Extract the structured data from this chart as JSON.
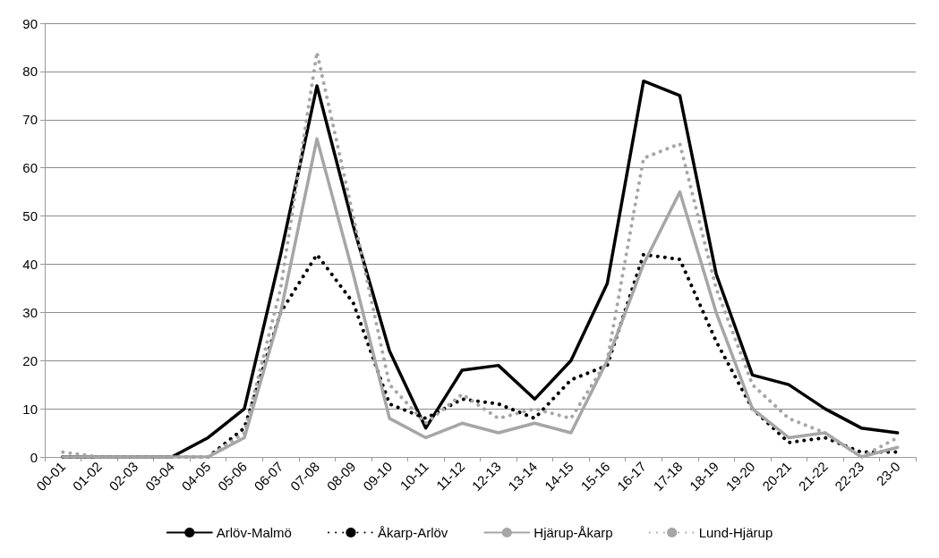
{
  "chart_data": {
    "type": "line",
    "categories": [
      "00-01",
      "01-02",
      "02-03",
      "03-04",
      "04-05",
      "05-06",
      "06-07",
      "07-08",
      "08-09",
      "09-10",
      "10-11",
      "11-12",
      "12-13",
      "13-14",
      "14-15",
      "15-16",
      "16-17",
      "17-18",
      "18-19",
      "19-20",
      "20-21",
      "21-22",
      "22-23",
      "23-0"
    ],
    "series": [
      {
        "name": "Arlöv-Malmö",
        "color": "#000000",
        "line_style": "solid",
        "values": [
          0,
          0,
          0,
          0,
          4,
          10,
          42,
          77,
          48,
          22,
          6,
          18,
          19,
          12,
          20,
          36,
          78,
          75,
          38,
          17,
          15,
          10,
          6,
          5
        ]
      },
      {
        "name": "Åkarp-Arlöv",
        "color": "#000000",
        "line_style": "dotted",
        "values": [
          0,
          0,
          0,
          0,
          0,
          6,
          30,
          42,
          32,
          11,
          8,
          12,
          11,
          8,
          16,
          19,
          42,
          41,
          24,
          10,
          3,
          4,
          1,
          1
        ]
      },
      {
        "name": "Hjärup-Åkarp",
        "color": "#a6a6a6",
        "line_style": "solid",
        "values": [
          0,
          0,
          0,
          0,
          0,
          4,
          30,
          66,
          38,
          8,
          4,
          7,
          5,
          7,
          5,
          20,
          40,
          55,
          30,
          10,
          4,
          5,
          0,
          2
        ]
      },
      {
        "name": "Lund-Hjärup",
        "color": "#a6a6a6",
        "line_style": "dotted",
        "values": [
          1,
          0,
          0,
          0,
          0,
          5,
          35,
          84,
          50,
          15,
          7,
          13,
          8,
          10,
          8,
          20,
          62,
          65,
          35,
          15,
          8,
          5,
          0,
          4
        ]
      }
    ],
    "ylim": [
      0,
      90
    ],
    "yticks": [
      0,
      10,
      20,
      30,
      40,
      50,
      60,
      70,
      80,
      90
    ],
    "grid": "y",
    "legend": "bottom",
    "marker": "none"
  }
}
